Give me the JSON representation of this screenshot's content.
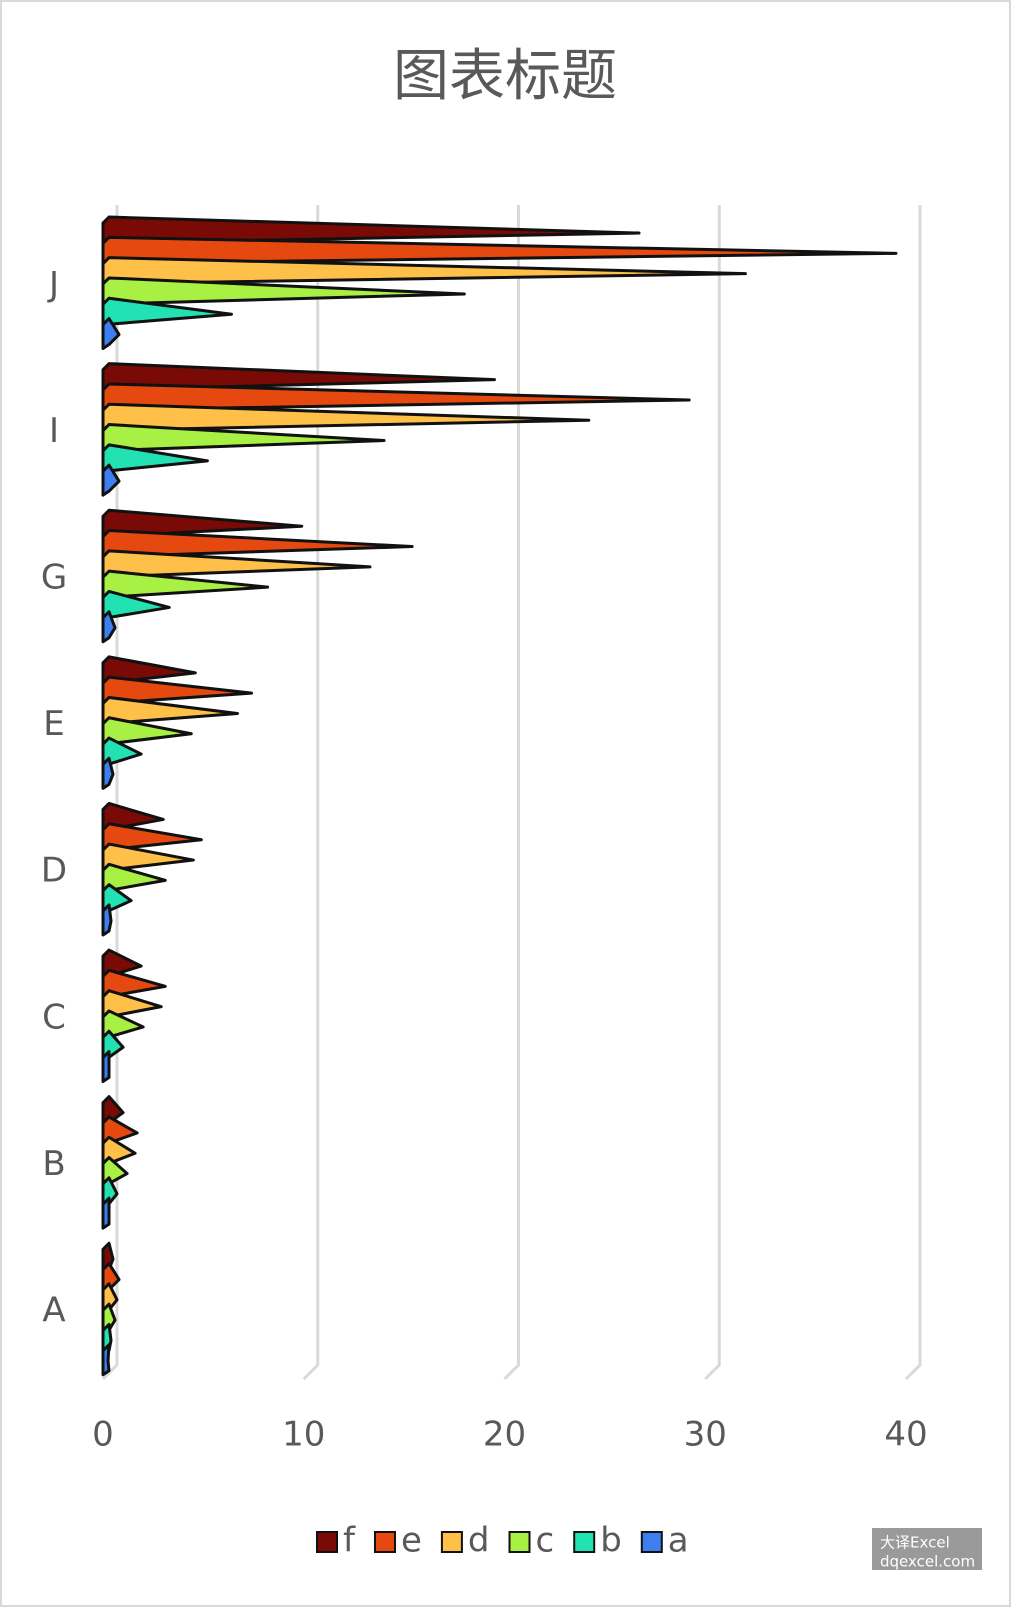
{
  "chart_data": {
    "type": "pyramid-bar",
    "title": "图表标题",
    "categories": [
      "A",
      "B",
      "C",
      "D",
      "E",
      "G",
      "I",
      "J"
    ],
    "series": [
      {
        "name": "f",
        "color": "#7a0a05",
        "values": [
          0.5,
          1,
          1.9,
          3,
          4.6,
          9.9,
          19.5,
          26.7
        ]
      },
      {
        "name": "e",
        "color": "#e5490f",
        "values": [
          0.8,
          1.7,
          3.1,
          4.9,
          7.4,
          15.4,
          29.2,
          39.5
        ]
      },
      {
        "name": "d",
        "color": "#ffc04a",
        "values": [
          0.7,
          1.6,
          2.9,
          4.5,
          6.7,
          13.3,
          24.2,
          32
        ]
      },
      {
        "name": "c",
        "color": "#a8f044",
        "values": [
          0.6,
          1.2,
          2,
          3.1,
          4.4,
          8.2,
          14,
          18
        ]
      },
      {
        "name": "b",
        "color": "#22e2b4",
        "values": [
          0.4,
          0.7,
          1,
          1.4,
          1.9,
          3.3,
          5.2,
          6.4
        ]
      },
      {
        "name": "a",
        "color": "#3b7ff0",
        "values": [
          0.25,
          0.3,
          0.3,
          0.4,
          0.5,
          0.6,
          0.8,
          0.8
        ]
      }
    ],
    "xlim": [
      0,
      40
    ],
    "xticks": [
      0,
      10,
      20,
      30,
      40
    ],
    "grid": true,
    "legend": "bottom",
    "watermark": [
      "大译Excel",
      "dqexcel.com"
    ]
  }
}
